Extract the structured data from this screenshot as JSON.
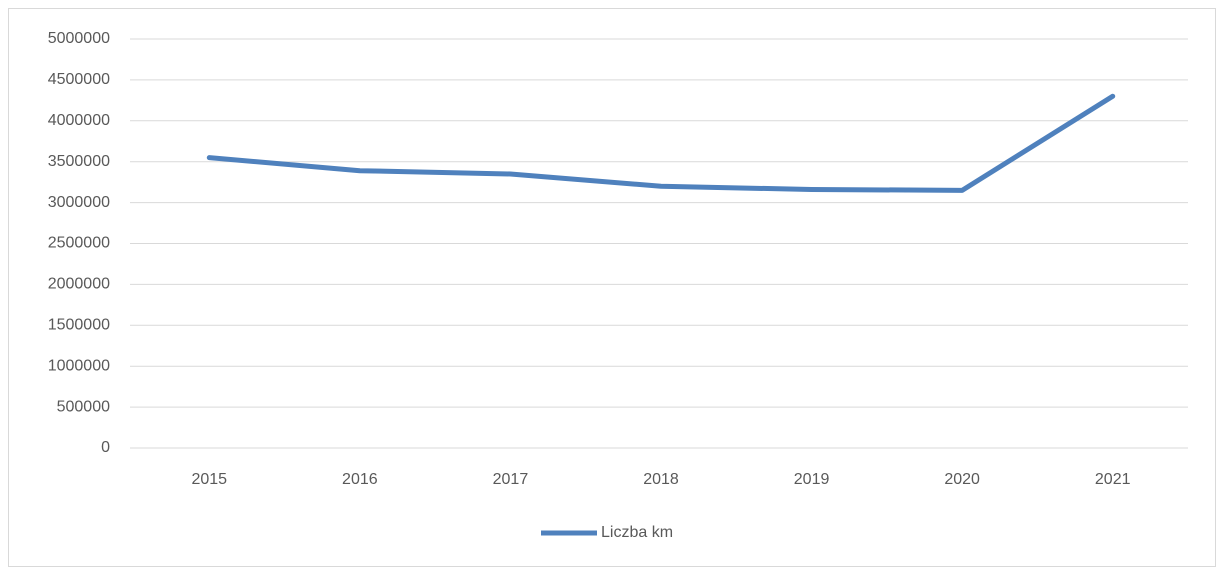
{
  "chart_data": {
    "type": "line",
    "categories": [
      "2015",
      "2016",
      "2017",
      "2018",
      "2019",
      "2020",
      "2021"
    ],
    "series": [
      {
        "name": "Liczba km",
        "color": "#4f81bd",
        "values": [
          3550000,
          3390000,
          3350000,
          3200000,
          3160000,
          3150000,
          4300000
        ]
      }
    ],
    "ylim": [
      0,
      5000000
    ],
    "yticks": [
      0,
      500000,
      1000000,
      1500000,
      2000000,
      2500000,
      3000000,
      3500000,
      4000000,
      4500000,
      5000000
    ],
    "grid": true,
    "legend": "bottom"
  }
}
